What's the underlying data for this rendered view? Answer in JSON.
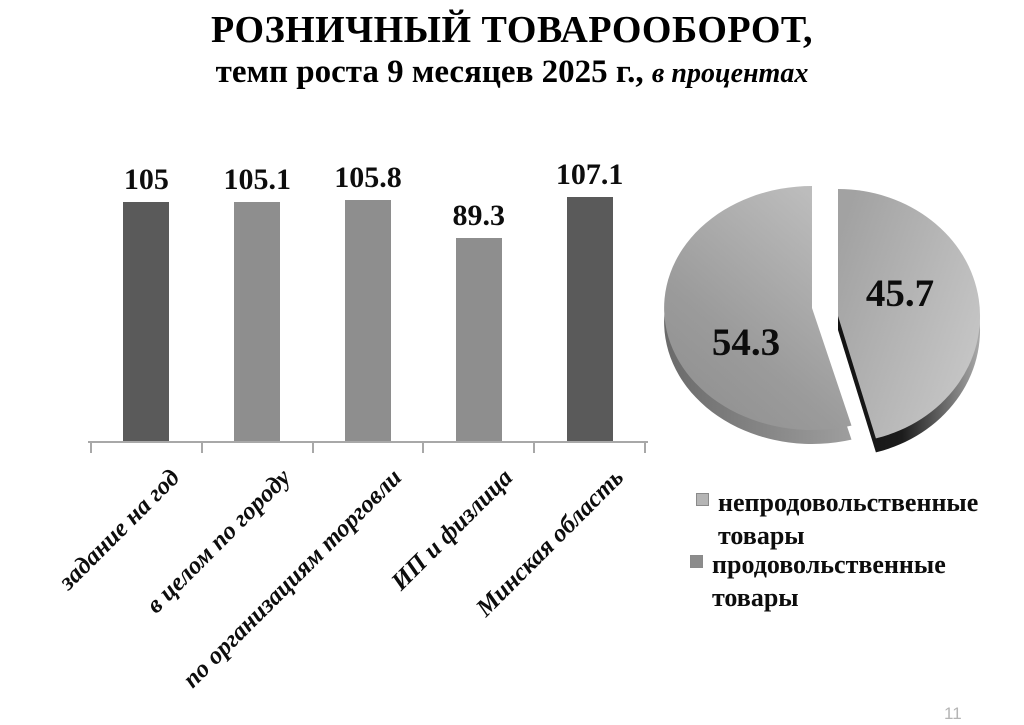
{
  "slide": {
    "title_line1": "РОЗНИЧНЫЙ ТОВАРООБОРОТ,",
    "title_line2": "темп роста 9 месяцев 2025 г.,",
    "title_line2_italic": "в процентах",
    "page_number": "11"
  },
  "chart_data": [
    {
      "type": "bar",
      "title": "",
      "categories": [
        "задание на год",
        "в целом по городу",
        "по организациям торговли",
        "ИП и физлица",
        "Минская область"
      ],
      "values": [
        105,
        105.1,
        105.8,
        89.3,
        107.1
      ],
      "value_labels": [
        "105",
        "105.1",
        "105.8",
        "89.3",
        "107.1"
      ],
      "bar_colors": [
        "#5a5a5a",
        "#8e8e8e",
        "#8e8e8e",
        "#8e8e8e",
        "#5a5a5a"
      ],
      "xlabel": "",
      "ylabel": "",
      "ylim": [
        0,
        120
      ],
      "grid": false,
      "axis_color": "#a8a8a8",
      "value_axis_shown": false
    },
    {
      "type": "pie",
      "style": "3d-exploded",
      "slices": [
        {
          "label": "непродовольственные товары",
          "value": 45.7,
          "color": "#b5b5b5"
        },
        {
          "label": "продовольственные товары",
          "value": 54.3,
          "color": "#8c8c8c"
        }
      ],
      "labels_shown": [
        "45.7",
        "54.3"
      ],
      "legend_position": "bottom-right"
    }
  ]
}
